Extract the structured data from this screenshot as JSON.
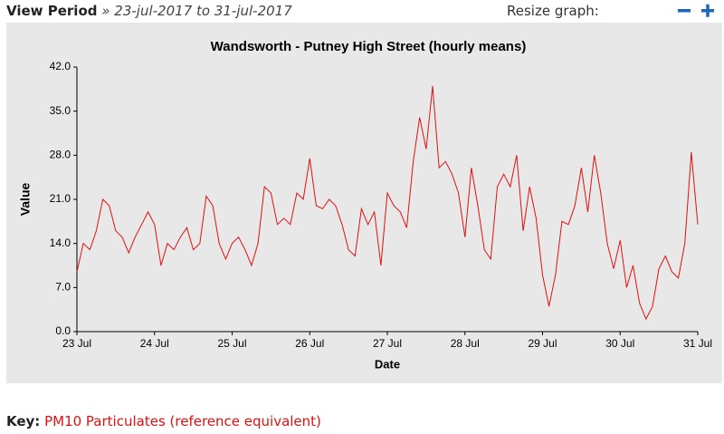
{
  "header": {
    "view_label": "View Period",
    "period": "» 23-jul-2017 to 31-jul-2017",
    "resize_label": "Resize graph:"
  },
  "key_label": "Key:",
  "chart_data": {
    "type": "line",
    "title": "Wandsworth - Putney High Street (hourly means)",
    "x_label": "Date",
    "y_label": "Value",
    "xlim": [
      0,
      8
    ],
    "xticks": [
      {
        "value": 0,
        "label": "23 Jul"
      },
      {
        "value": 1,
        "label": "24 Jul"
      },
      {
        "value": 2,
        "label": "25 Jul"
      },
      {
        "value": 3,
        "label": "26 Jul"
      },
      {
        "value": 4,
        "label": "27 Jul"
      },
      {
        "value": 5,
        "label": "28 Jul"
      },
      {
        "value": 6,
        "label": "29 Jul"
      },
      {
        "value": 7,
        "label": "30 Jul"
      },
      {
        "value": 8,
        "label": "31 Jul"
      }
    ],
    "ylim": [
      0,
      42
    ],
    "yticks": [
      {
        "value": 0,
        "label": "0.0"
      },
      {
        "value": 7,
        "label": "7.0"
      },
      {
        "value": 14,
        "label": "14.0"
      },
      {
        "value": 21,
        "label": "21.0"
      },
      {
        "value": 28,
        "label": "28.0"
      },
      {
        "value": 35,
        "label": "35.0"
      },
      {
        "value": 42,
        "label": "42.0"
      }
    ],
    "grid": false,
    "series": [
      {
        "name": "PM10 Particulates (reference equivalent)",
        "color": "#e01010",
        "values": [
          9.5,
          14,
          13,
          16,
          21,
          20,
          16,
          15,
          12.5,
          15,
          17,
          19,
          17,
          10.5,
          14,
          13,
          15,
          16.5,
          13,
          14,
          21.5,
          20,
          14,
          11.5,
          14,
          15,
          13,
          10.5,
          14,
          23,
          22,
          17,
          18,
          17,
          22,
          21,
          27.5,
          20,
          19.5,
          21,
          20,
          17,
          13,
          12,
          19.5,
          17,
          19,
          10.5,
          22,
          20,
          19,
          16.5,
          27,
          34,
          29,
          39,
          26,
          27,
          25,
          22,
          15,
          26,
          20,
          13,
          11.5,
          23,
          25,
          23,
          28,
          16,
          23,
          18,
          9,
          4,
          9,
          17.5,
          17,
          20,
          26,
          19,
          28,
          22,
          14,
          10,
          14.5,
          7,
          10.5,
          4.5,
          2,
          4,
          10,
          12,
          9.5,
          8.5,
          14,
          28.5,
          17
        ]
      }
    ]
  }
}
